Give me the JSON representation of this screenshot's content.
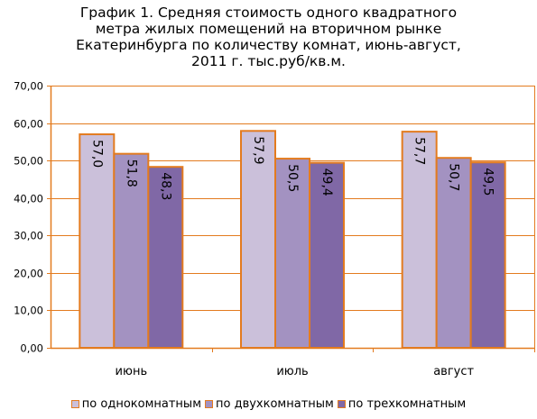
{
  "title_lines": [
    "График 1. Средняя стоимость одного квадратного",
    "метра жилых помещений на вторичном рынке",
    "Екатеринбурга по количеству комнат, июнь-август,",
    "2011 г. тыс.руб/кв.м."
  ],
  "colors": {
    "bar_outline": "#e37b1f",
    "axis": "#e37b1f",
    "grid": "#e37b1f"
  },
  "chart_data": {
    "type": "bar",
    "title": "График 1. Средняя стоимость одного квадратного метра жилых помещений на вторичном рынке Екатеринбурга по количеству комнат, июнь-август, 2011 г. тыс.руб/кв.м.",
    "categories": [
      "июнь",
      "июль",
      "август"
    ],
    "series": [
      {
        "name": "по однокомнатным",
        "values": [
          57.0,
          57.9,
          57.7
        ],
        "labels": [
          "57,0",
          "57,9",
          "57,7"
        ],
        "color": "#cbc0da"
      },
      {
        "name": "по двухкомнатным",
        "values": [
          51.8,
          50.5,
          50.7
        ],
        "labels": [
          "51,8",
          "50,5",
          "50,7"
        ],
        "color": "#a392c1"
      },
      {
        "name": "по трехкомнатным",
        "values": [
          48.3,
          49.4,
          49.5
        ],
        "labels": [
          "48,3",
          "49,4",
          "49,5"
        ],
        "color": "#8068a6"
      }
    ],
    "ylim": [
      0,
      70
    ],
    "yticks": [
      0,
      10,
      20,
      30,
      40,
      50,
      60,
      70
    ],
    "ytick_labels": [
      "0,00",
      "10,00",
      "20,00",
      "30,00",
      "40,00",
      "50,00",
      "60,00",
      "70,00"
    ],
    "xlabel": "",
    "ylabel": "",
    "grid": true,
    "legend_position": "bottom"
  }
}
